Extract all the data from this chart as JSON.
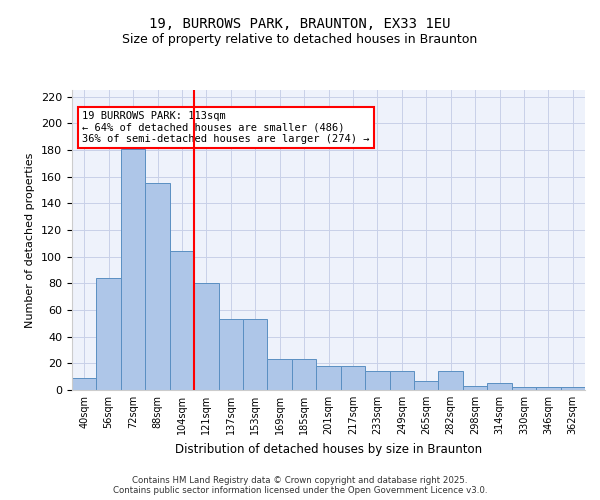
{
  "title1": "19, BURROWS PARK, BRAUNTON, EX33 1EU",
  "title2": "Size of property relative to detached houses in Braunton",
  "xlabel": "Distribution of detached houses by size in Braunton",
  "ylabel": "Number of detached properties",
  "bar_values": [
    9,
    84,
    181,
    155,
    104,
    80,
    53,
    53,
    23,
    23,
    18,
    18,
    14,
    14,
    7,
    14,
    3,
    5,
    2,
    2,
    2
  ],
  "categories": [
    "40sqm",
    "56sqm",
    "72sqm",
    "88sqm",
    "104sqm",
    "121sqm",
    "137sqm",
    "153sqm",
    "169sqm",
    "185sqm",
    "201sqm",
    "217sqm",
    "233sqm",
    "249sqm",
    "265sqm",
    "282sqm",
    "298sqm",
    "314sqm",
    "330sqm",
    "346sqm",
    "362sqm"
  ],
  "bar_color": "#aec6e8",
  "bar_edge_color": "#5a8fc2",
  "red_line_x": 4.5,
  "annotation_text": "19 BURROWS PARK: 113sqm\n← 64% of detached houses are smaller (486)\n36% of semi-detached houses are larger (274) →",
  "annotation_box_color": "white",
  "annotation_box_edge_color": "red",
  "vline_color": "red",
  "ylim": [
    0,
    225
  ],
  "yticks": [
    0,
    20,
    40,
    60,
    80,
    100,
    120,
    140,
    160,
    180,
    200,
    220
  ],
  "footer_text": "Contains HM Land Registry data © Crown copyright and database right 2025.\nContains public sector information licensed under the Open Government Licence v3.0.",
  "bg_color": "#eef2fb",
  "grid_color": "#c8d0e8"
}
